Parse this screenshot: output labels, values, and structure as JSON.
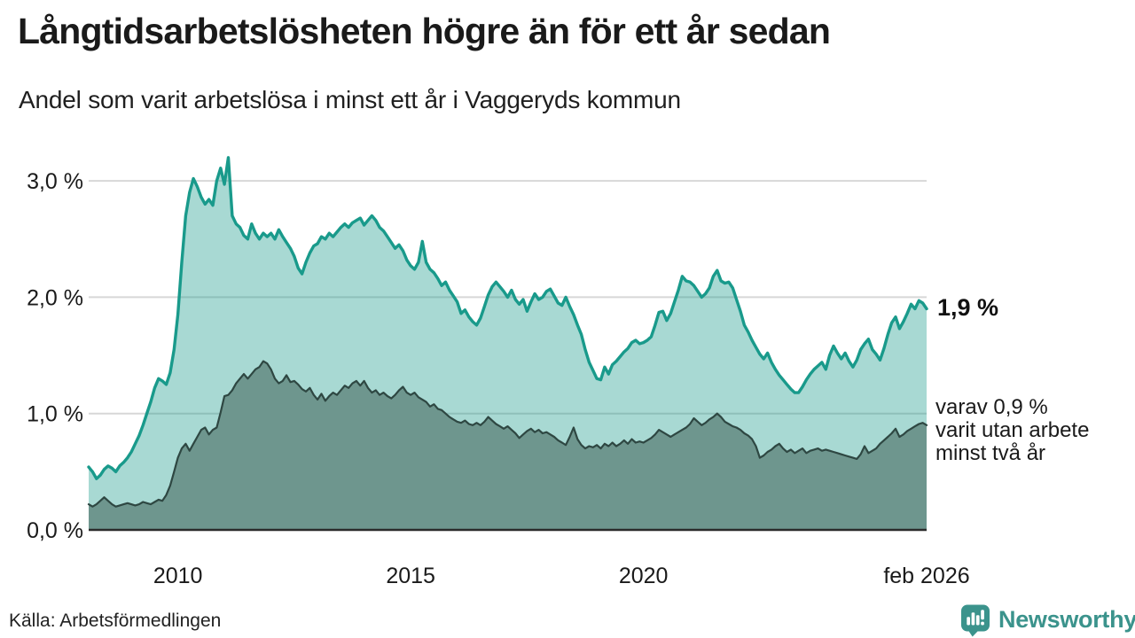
{
  "header": {
    "title": "Långtidsarbetslösheten högre än för ett år sedan",
    "subtitle": "Andel som varit arbetslösa i minst ett år i Vaggeryds kommun"
  },
  "annotations": {
    "latest_value": "1,9 %",
    "secondary_line1": "varav 0,9 %",
    "secondary_line2": "varit utan arbete",
    "secondary_line3": "minst två år"
  },
  "footer": {
    "source": "Källa: Arbetsförmedlingen",
    "brand": "Newsworthy",
    "brand_icon": "bar-chart-speech-bubble",
    "brand_color": "#3b938c"
  },
  "colors": {
    "line_1yr": "#199a8b",
    "fill_1yr": "rgba(25,154,139,0.38)",
    "line_2yr": "#2e4742",
    "fill_2yr": "#6e968e",
    "gridline": "#d7d7d7",
    "axis": "#2b2b2b"
  },
  "chart_data": {
    "type": "area",
    "title": "Långtidsarbetslösheten högre än för ett år sedan",
    "subtitle": "Andel som varit arbetslösa i minst ett år i Vaggeryds kommun",
    "unit": "%",
    "frequency": "monthly",
    "x_start": "2008-02",
    "x_end": "2026-02",
    "ylim": [
      0,
      3.3
    ],
    "grid": "horizontal",
    "legend_position": "none",
    "y_ticks": [
      {
        "value": 0,
        "label": "0,0 %"
      },
      {
        "value": 1,
        "label": "1,0 %"
      },
      {
        "value": 2,
        "label": "2,0 %"
      },
      {
        "value": 3,
        "label": "3,0 %"
      }
    ],
    "x_ticks": [
      {
        "index": 23,
        "label": "2010"
      },
      {
        "index": 83,
        "label": "2015"
      },
      {
        "index": 143,
        "label": "2020"
      },
      {
        "index": 216,
        "label": "feb 2026"
      }
    ],
    "series": [
      {
        "name": "Andel som varit arbetslösa i minst ett år",
        "latest_label": "1,9 %",
        "values": [
          0.54,
          0.5,
          0.44,
          0.47,
          0.52,
          0.55,
          0.53,
          0.5,
          0.55,
          0.58,
          0.62,
          0.67,
          0.74,
          0.81,
          0.9,
          1.0,
          1.1,
          1.22,
          1.3,
          1.28,
          1.25,
          1.35,
          1.55,
          1.85,
          2.3,
          2.7,
          2.9,
          3.02,
          2.95,
          2.86,
          2.8,
          2.84,
          2.79,
          3.0,
          3.11,
          2.97,
          3.2,
          2.7,
          2.63,
          2.6,
          2.53,
          2.5,
          2.63,
          2.55,
          2.5,
          2.55,
          2.52,
          2.55,
          2.5,
          2.58,
          2.52,
          2.47,
          2.42,
          2.35,
          2.25,
          2.2,
          2.3,
          2.38,
          2.44,
          2.46,
          2.52,
          2.5,
          2.55,
          2.52,
          2.56,
          2.6,
          2.63,
          2.6,
          2.64,
          2.66,
          2.68,
          2.62,
          2.66,
          2.7,
          2.66,
          2.6,
          2.57,
          2.52,
          2.47,
          2.42,
          2.45,
          2.4,
          2.32,
          2.27,
          2.24,
          2.3,
          2.48,
          2.3,
          2.24,
          2.21,
          2.16,
          2.1,
          2.13,
          2.06,
          2.01,
          1.96,
          1.86,
          1.89,
          1.83,
          1.79,
          1.76,
          1.82,
          1.92,
          2.02,
          2.09,
          2.13,
          2.09,
          2.05,
          2.0,
          2.06,
          1.98,
          1.94,
          1.98,
          1.88,
          1.96,
          2.03,
          1.98,
          2.0,
          2.05,
          2.07,
          2.01,
          1.95,
          1.93,
          2.0,
          1.92,
          1.85,
          1.76,
          1.68,
          1.55,
          1.44,
          1.37,
          1.3,
          1.29,
          1.4,
          1.34,
          1.42,
          1.45,
          1.49,
          1.53,
          1.56,
          1.61,
          1.63,
          1.6,
          1.61,
          1.63,
          1.66,
          1.76,
          1.87,
          1.88,
          1.8,
          1.86,
          1.96,
          2.06,
          2.18,
          2.14,
          2.13,
          2.1,
          2.05,
          2.0,
          2.03,
          2.08,
          2.18,
          2.23,
          2.14,
          2.12,
          2.13,
          2.08,
          1.98,
          1.88,
          1.76,
          1.7,
          1.63,
          1.57,
          1.51,
          1.47,
          1.52,
          1.44,
          1.38,
          1.33,
          1.29,
          1.25,
          1.21,
          1.18,
          1.18,
          1.23,
          1.29,
          1.34,
          1.38,
          1.41,
          1.44,
          1.38,
          1.5,
          1.58,
          1.52,
          1.47,
          1.52,
          1.45,
          1.4,
          1.46,
          1.55,
          1.6,
          1.64,
          1.55,
          1.51,
          1.46,
          1.56,
          1.68,
          1.78,
          1.83,
          1.73,
          1.79,
          1.86,
          1.94,
          1.9,
          1.97,
          1.95,
          1.9
        ]
      },
      {
        "name": "varav arbetslösa minst två år",
        "latest_label": "0,9 %",
        "values": [
          0.22,
          0.2,
          0.22,
          0.25,
          0.28,
          0.25,
          0.22,
          0.2,
          0.21,
          0.22,
          0.23,
          0.22,
          0.21,
          0.22,
          0.24,
          0.23,
          0.22,
          0.24,
          0.26,
          0.25,
          0.3,
          0.38,
          0.5,
          0.62,
          0.7,
          0.74,
          0.68,
          0.74,
          0.8,
          0.86,
          0.88,
          0.82,
          0.86,
          0.88,
          1.01,
          1.15,
          1.16,
          1.2,
          1.26,
          1.3,
          1.34,
          1.3,
          1.34,
          1.38,
          1.4,
          1.45,
          1.43,
          1.38,
          1.3,
          1.26,
          1.28,
          1.33,
          1.27,
          1.28,
          1.25,
          1.21,
          1.19,
          1.22,
          1.16,
          1.12,
          1.17,
          1.11,
          1.15,
          1.18,
          1.16,
          1.2,
          1.24,
          1.22,
          1.26,
          1.28,
          1.24,
          1.28,
          1.22,
          1.18,
          1.2,
          1.16,
          1.18,
          1.15,
          1.13,
          1.16,
          1.2,
          1.23,
          1.18,
          1.16,
          1.18,
          1.14,
          1.12,
          1.1,
          1.06,
          1.08,
          1.04,
          1.03,
          1.0,
          0.97,
          0.95,
          0.93,
          0.92,
          0.94,
          0.91,
          0.9,
          0.92,
          0.9,
          0.93,
          0.97,
          0.94,
          0.91,
          0.89,
          0.87,
          0.89,
          0.86,
          0.83,
          0.79,
          0.82,
          0.85,
          0.87,
          0.84,
          0.86,
          0.83,
          0.84,
          0.82,
          0.8,
          0.77,
          0.75,
          0.73,
          0.8,
          0.88,
          0.78,
          0.73,
          0.7,
          0.72,
          0.71,
          0.73,
          0.7,
          0.74,
          0.72,
          0.75,
          0.72,
          0.74,
          0.77,
          0.74,
          0.78,
          0.75,
          0.76,
          0.75,
          0.77,
          0.79,
          0.82,
          0.86,
          0.84,
          0.82,
          0.8,
          0.82,
          0.84,
          0.86,
          0.88,
          0.91,
          0.96,
          0.93,
          0.9,
          0.92,
          0.95,
          0.97,
          1.0,
          0.97,
          0.93,
          0.91,
          0.89,
          0.88,
          0.86,
          0.83,
          0.81,
          0.78,
          0.72,
          0.62,
          0.64,
          0.67,
          0.69,
          0.72,
          0.74,
          0.7,
          0.67,
          0.69,
          0.66,
          0.68,
          0.7,
          0.66,
          0.68,
          0.69,
          0.7,
          0.68,
          0.69,
          0.68,
          0.67,
          0.66,
          0.65,
          0.64,
          0.63,
          0.62,
          0.61,
          0.65,
          0.72,
          0.66,
          0.68,
          0.7,
          0.74,
          0.77,
          0.8,
          0.83,
          0.87,
          0.8,
          0.82,
          0.85,
          0.87,
          0.89,
          0.91,
          0.92,
          0.9
        ]
      }
    ]
  }
}
